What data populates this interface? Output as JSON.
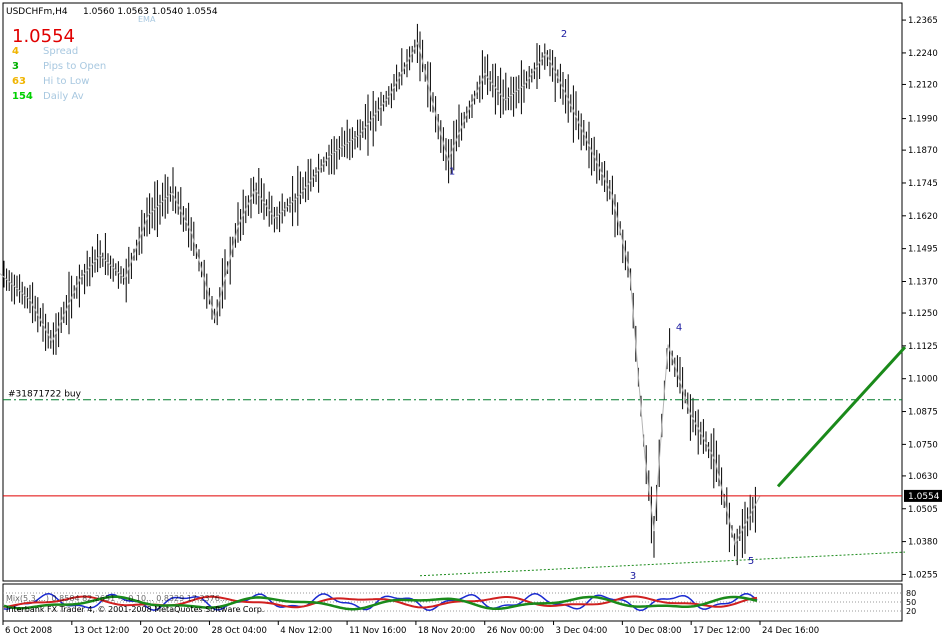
{
  "header": {
    "symbol": "USDCHFm,H4",
    "ohlc": "1.0560 1.0563 1.0540 1.0554",
    "ema_label": "EMA"
  },
  "info_panel": {
    "price": "1.0554",
    "rows": [
      {
        "value": "4",
        "label": "Spread",
        "value_color": "#f0b400"
      },
      {
        "value": "3",
        "label": "Pips to Open",
        "value_color": "#00b000"
      },
      {
        "value": "63",
        "label": "Hi to Low",
        "value_color": "#f0b400"
      },
      {
        "value": "154",
        "label": "Daily Av",
        "value_color": "#00d000"
      }
    ]
  },
  "colors": {
    "bars": "#000000",
    "zigzag": "#b4b4b4",
    "bid_line": "#e00000",
    "order_line": "#007a2a",
    "trend_arrow": "#1a8a1a",
    "dotted_trend": "#1a8a1a",
    "wave_labels": "#1a1aa0",
    "price_text": "#e00000",
    "info_label": "#a8c8e0",
    "osc_blue": "#1a2ad0",
    "osc_green": "#1a8a1a",
    "osc_red": "#d02020"
  },
  "order": {
    "label": "#31871722 buy",
    "price": 1.092
  },
  "current_price_label": "1.0554",
  "indicator": {
    "text_line1": "Mix(5,3,...) 0.8584 82.2651 -...0 10... 0.8329 17.2376...",
    "text_line2": "Interbank FX Trader 4, © 2001-2008 MetaQuotes Software Corp.",
    "levels": [
      "80",
      "50",
      "20"
    ]
  },
  "chart_data": {
    "type": "candlestick",
    "symbol": "USDCHFm,H4",
    "ylim": [
      1.023,
      1.243
    ],
    "y_ticks": [
      "1.2365",
      "1.2240",
      "1.2120",
      "1.1990",
      "1.1870",
      "1.1745",
      "1.1620",
      "1.1495",
      "1.1370",
      "1.1250",
      "1.1125",
      "1.1000",
      "1.0875",
      "1.0750",
      "1.0630",
      "1.0505",
      "1.0380",
      "1.0255"
    ],
    "x_ticks": [
      "6 Oct 2008",
      "13 Oct 12:00",
      "20 Oct 20:00",
      "28 Oct 04:00",
      "4 Nov 12:00",
      "11 Nov 16:00",
      "18 Nov 20:00",
      "26 Nov 00:00",
      "3 Dec 04:00",
      "10 Dec 08:00",
      "17 Dec 12:00",
      "24 Dec 16:00"
    ],
    "bid_price": 1.0554,
    "wave_points": [
      {
        "label": "1",
        "price": 1.183
      },
      {
        "label": "2",
        "price": 1.224
      },
      {
        "label": "3",
        "price": 1.042
      },
      {
        "label": "4",
        "price": 1.113
      },
      {
        "label": "5",
        "price": 1.037
      }
    ],
    "price_path": [
      {
        "x": 0,
        "price": 1.14
      },
      {
        "x": 30,
        "price": 1.13
      },
      {
        "x": 52,
        "price": 1.114
      },
      {
        "x": 80,
        "price": 1.138
      },
      {
        "x": 100,
        "price": 1.147
      },
      {
        "x": 125,
        "price": 1.138
      },
      {
        "x": 148,
        "price": 1.162
      },
      {
        "x": 172,
        "price": 1.171
      },
      {
        "x": 192,
        "price": 1.155
      },
      {
        "x": 215,
        "price": 1.123
      },
      {
        "x": 238,
        "price": 1.158
      },
      {
        "x": 255,
        "price": 1.172
      },
      {
        "x": 275,
        "price": 1.161
      },
      {
        "x": 300,
        "price": 1.17
      },
      {
        "x": 330,
        "price": 1.185
      },
      {
        "x": 360,
        "price": 1.193
      },
      {
        "x": 390,
        "price": 1.208
      },
      {
        "x": 418,
        "price": 1.228
      },
      {
        "x": 432,
        "price": 1.206
      },
      {
        "x": 448,
        "price": 1.183
      },
      {
        "x": 465,
        "price": 1.199
      },
      {
        "x": 485,
        "price": 1.216
      },
      {
        "x": 505,
        "price": 1.206
      },
      {
        "x": 525,
        "price": 1.212
      },
      {
        "x": 546,
        "price": 1.224
      },
      {
        "x": 565,
        "price": 1.209
      },
      {
        "x": 590,
        "price": 1.188
      },
      {
        "x": 612,
        "price": 1.17
      },
      {
        "x": 630,
        "price": 1.14
      },
      {
        "x": 645,
        "price": 1.07
      },
      {
        "x": 654,
        "price": 1.042
      },
      {
        "x": 668,
        "price": 1.113
      },
      {
        "x": 690,
        "price": 1.087
      },
      {
        "x": 715,
        "price": 1.069
      },
      {
        "x": 735,
        "price": 1.037
      },
      {
        "x": 760,
        "price": 1.0554
      }
    ],
    "order_line_price": 1.092,
    "trend_arrow": {
      "from": {
        "x": 778,
        "price": 1.059
      },
      "to": {
        "x": 905,
        "price": 1.112
      }
    },
    "dotted_trend": {
      "from": {
        "x": 420,
        "price": 1.025
      },
      "to": {
        "x": 905,
        "price": 1.034
      }
    }
  }
}
